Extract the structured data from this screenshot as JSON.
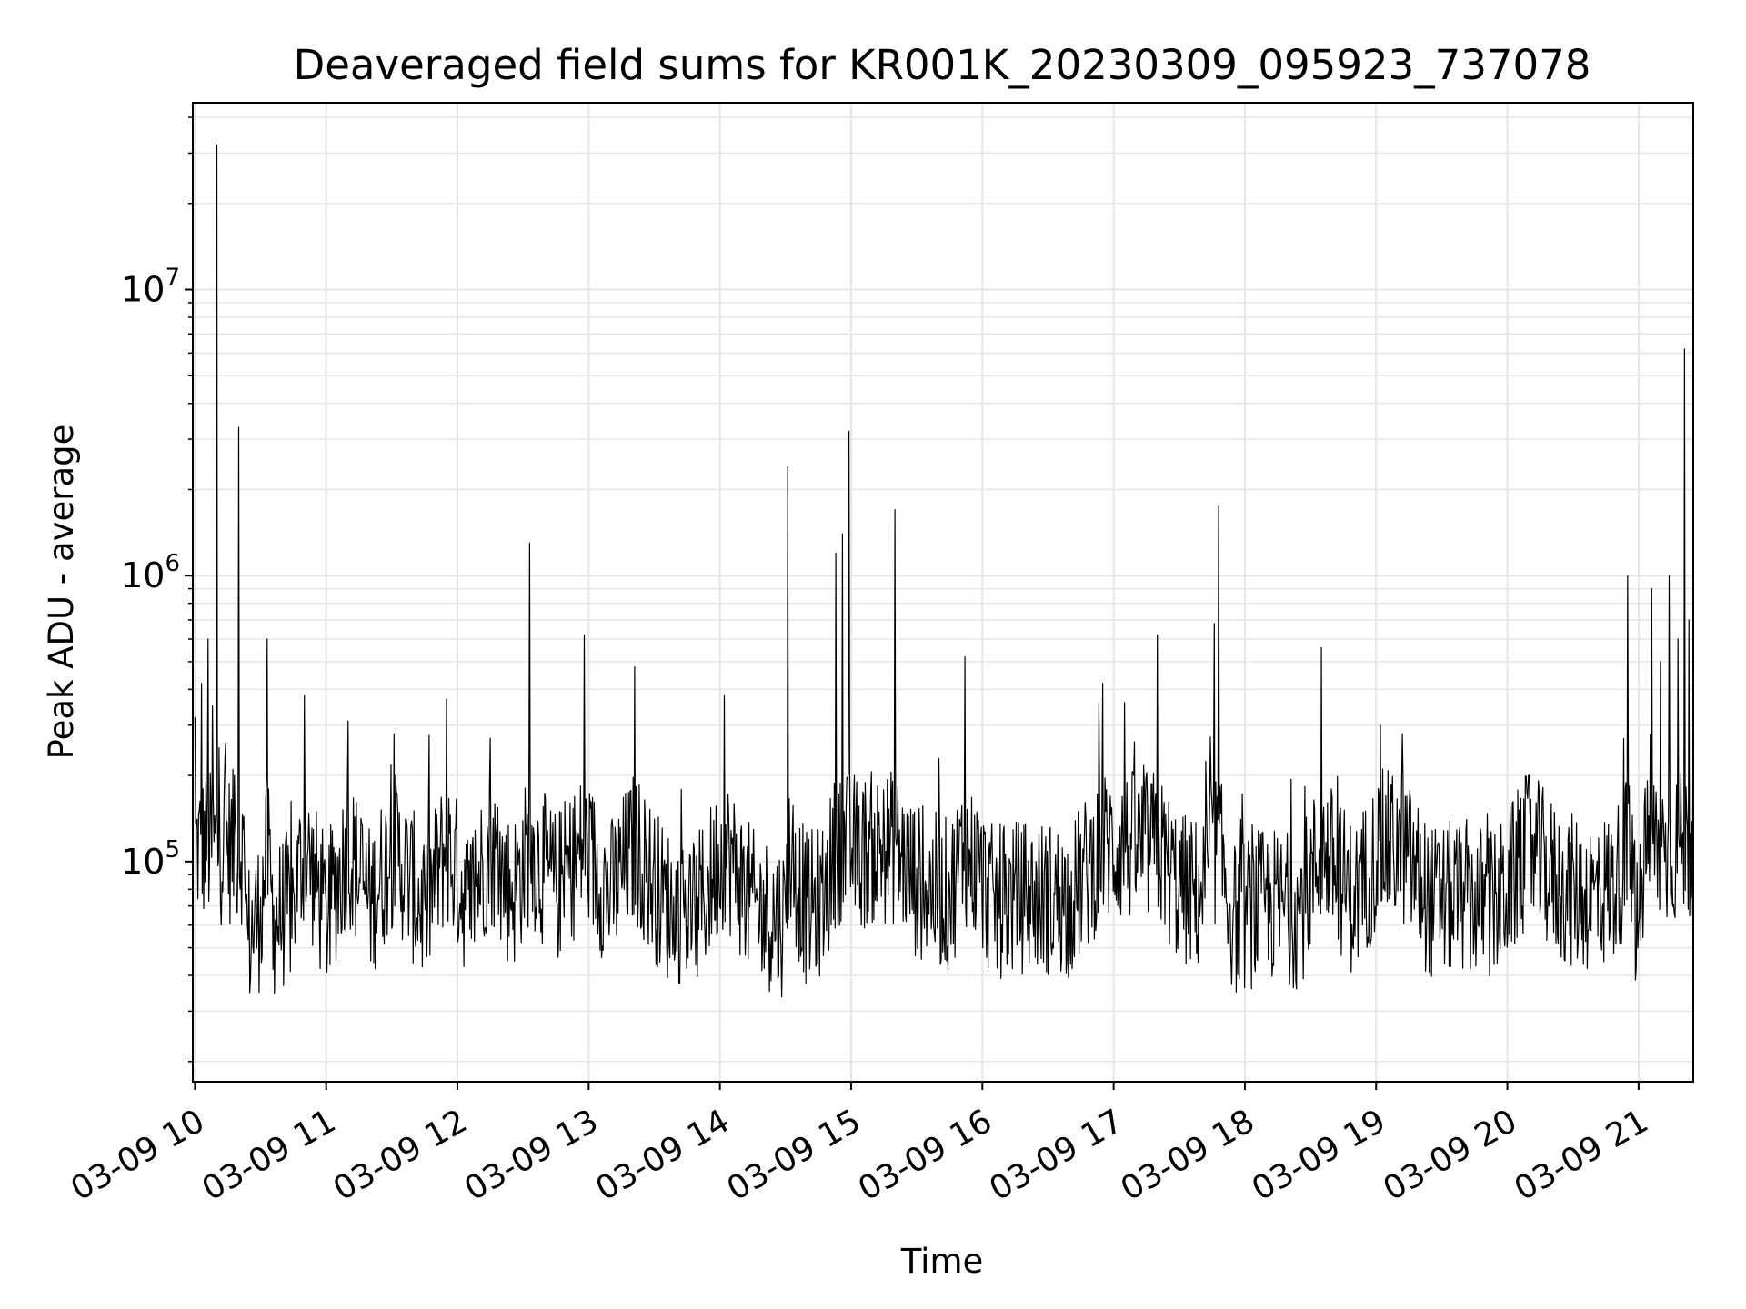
{
  "chart_data": {
    "type": "line",
    "title": "Deaveraged field sums for KR001K_20230309_095923_737078",
    "xlabel": "Time",
    "ylabel": "Peak ADU - average",
    "yscale": "log",
    "grid": true,
    "line_color": "#000000",
    "grid_color": "#e6e6e6",
    "xlim": [
      "2023-03-09 09:59",
      "2023-03-09 21:25"
    ],
    "ylim": [
      17000,
      45000000
    ],
    "xticks": [
      {
        "value": "2023-03-09 10:00",
        "label": "03-09 10"
      },
      {
        "value": "2023-03-09 11:00",
        "label": "03-09 11"
      },
      {
        "value": "2023-03-09 12:00",
        "label": "03-09 12"
      },
      {
        "value": "2023-03-09 13:00",
        "label": "03-09 13"
      },
      {
        "value": "2023-03-09 14:00",
        "label": "03-09 14"
      },
      {
        "value": "2023-03-09 15:00",
        "label": "03-09 15"
      },
      {
        "value": "2023-03-09 16:00",
        "label": "03-09 16"
      },
      {
        "value": "2023-03-09 17:00",
        "label": "03-09 17"
      },
      {
        "value": "2023-03-09 18:00",
        "label": "03-09 18"
      },
      {
        "value": "2023-03-09 19:00",
        "label": "03-09 19"
      },
      {
        "value": "2023-03-09 20:00",
        "label": "03-09 20"
      },
      {
        "value": "2023-03-09 21:00",
        "label": "03-09 21"
      }
    ],
    "yticks": [
      {
        "value": 100000,
        "base": "10",
        "exp": "5"
      },
      {
        "value": 1000000,
        "base": "10",
        "exp": "6"
      },
      {
        "value": 10000000,
        "base": "10",
        "exp": "7"
      }
    ],
    "series": [
      {
        "points": [
          [
            "2023-03-09 10:00",
            320000
          ],
          [
            "2023-03-09 10:03",
            420000
          ],
          [
            "2023-03-09 10:06",
            600000
          ],
          [
            "2023-03-09 10:08",
            350000
          ],
          [
            "2023-03-09 10:10",
            32000000
          ],
          [
            "2023-03-09 10:11",
            250000
          ],
          [
            "2023-03-09 10:14",
            260000
          ],
          [
            "2023-03-09 10:18",
            200000
          ],
          [
            "2023-03-09 10:20",
            3300000
          ],
          [
            "2023-03-09 10:22",
            130000
          ],
          [
            "2023-03-09 10:24",
            60000
          ],
          [
            "2023-03-09 10:30",
            75000
          ],
          [
            "2023-03-09 10:33",
            600000
          ],
          [
            "2023-03-09 10:36",
            70000
          ],
          [
            "2023-03-09 10:45",
            80000
          ],
          [
            "2023-03-09 10:50",
            380000
          ],
          [
            "2023-03-09 11:00",
            72000
          ],
          [
            "2023-03-09 11:10",
            310000
          ],
          [
            "2023-03-09 11:20",
            80000
          ],
          [
            "2023-03-09 11:31",
            280000
          ],
          [
            "2023-03-09 11:45",
            75000
          ],
          [
            "2023-03-09 11:55",
            370000
          ],
          [
            "2023-03-09 12:05",
            80000
          ],
          [
            "2023-03-09 12:15",
            270000
          ],
          [
            "2023-03-09 12:25",
            85000
          ],
          [
            "2023-03-09 12:33",
            1300000
          ],
          [
            "2023-03-09 12:45",
            90000
          ],
          [
            "2023-03-09 12:58",
            620000
          ],
          [
            "2023-03-09 13:10",
            85000
          ],
          [
            "2023-03-09 13:21",
            480000
          ],
          [
            "2023-03-09 13:35",
            80000
          ],
          [
            "2023-03-09 13:50",
            75000
          ],
          [
            "2023-03-09 14:02",
            380000
          ],
          [
            "2023-03-09 14:15",
            78000
          ],
          [
            "2023-03-09 14:30",
            70000
          ],
          [
            "2023-03-09 14:31",
            2400000
          ],
          [
            "2023-03-09 14:40",
            75000
          ],
          [
            "2023-03-09 14:48",
            85000
          ],
          [
            "2023-03-09 14:53",
            1200000
          ],
          [
            "2023-03-09 14:56",
            1400000
          ],
          [
            "2023-03-09 14:59",
            3200000
          ],
          [
            "2023-03-09 15:05",
            120000
          ],
          [
            "2023-03-09 15:10",
            130000
          ],
          [
            "2023-03-09 15:20",
            1700000
          ],
          [
            "2023-03-09 15:30",
            95000
          ],
          [
            "2023-03-09 15:45",
            85000
          ],
          [
            "2023-03-09 15:52",
            520000
          ],
          [
            "2023-03-09 16:05",
            80000
          ],
          [
            "2023-03-09 16:20",
            85000
          ],
          [
            "2023-03-09 16:40",
            82000
          ],
          [
            "2023-03-09 16:55",
            420000
          ],
          [
            "2023-03-09 17:05",
            360000
          ],
          [
            "2023-03-09 17:20",
            620000
          ],
          [
            "2023-03-09 17:30",
            90000
          ],
          [
            "2023-03-09 17:40",
            85000
          ],
          [
            "2023-03-09 17:46",
            680000
          ],
          [
            "2023-03-09 17:48",
            1750000
          ],
          [
            "2023-03-09 17:55",
            70000
          ],
          [
            "2023-03-09 18:10",
            80000
          ],
          [
            "2023-03-09 18:25",
            75000
          ],
          [
            "2023-03-09 18:35",
            560000
          ],
          [
            "2023-03-09 18:50",
            82000
          ],
          [
            "2023-03-09 19:02",
            300000
          ],
          [
            "2023-03-09 19:12",
            280000
          ],
          [
            "2023-03-09 19:25",
            80000
          ],
          [
            "2023-03-09 19:40",
            85000
          ],
          [
            "2023-03-09 19:55",
            78000
          ],
          [
            "2023-03-09 20:10",
            200000
          ],
          [
            "2023-03-09 20:25",
            90000
          ],
          [
            "2023-03-09 20:40",
            85000
          ],
          [
            "2023-03-09 20:50",
            95000
          ],
          [
            "2023-03-09 20:55",
            1000000
          ],
          [
            "2023-03-09 21:00",
            60000
          ],
          [
            "2023-03-09 21:03",
            180000
          ],
          [
            "2023-03-09 21:06",
            900000
          ],
          [
            "2023-03-09 21:10",
            500000
          ],
          [
            "2023-03-09 21:14",
            1000000
          ],
          [
            "2023-03-09 21:18",
            600000
          ],
          [
            "2023-03-09 21:21",
            6200000
          ],
          [
            "2023-03-09 21:23",
            700000
          ],
          [
            "2023-03-09 21:25",
            550000
          ]
        ]
      }
    ]
  }
}
